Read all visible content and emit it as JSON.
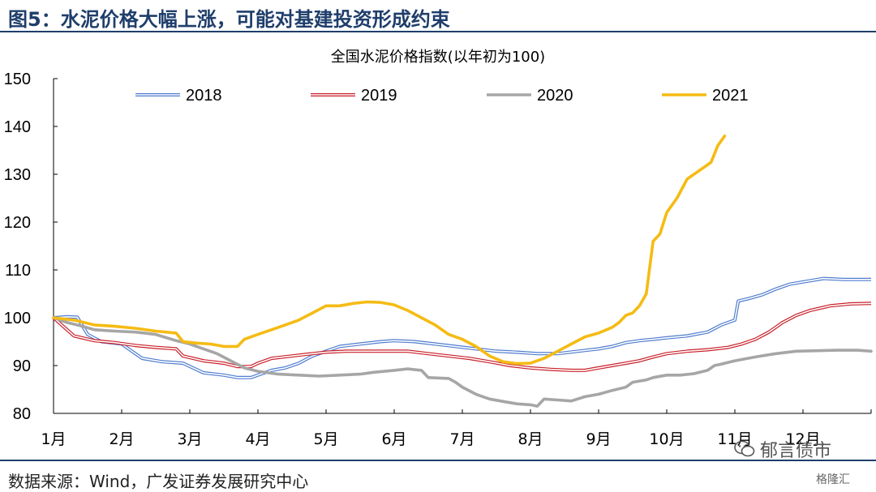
{
  "figure": {
    "title": "图5：水泥价格大幅上涨，可能对基建投资形成约束",
    "source": "数据来源：Wind，广发证券发展研究中心",
    "watermark": "郁言债市",
    "watermark_logo": "格隆汇"
  },
  "colors": {
    "2018": "#4f7ccf",
    "2019": "#c8202a",
    "2020": "#a6a6a6",
    "2021": "#f5bb14",
    "axis": "#000000",
    "title": "#1f3e6b"
  },
  "chart_data": {
    "type": "line",
    "title": "全国水泥价格指数(以年初为100)",
    "xlabel": "",
    "ylabel": "",
    "ylim": [
      80,
      150
    ],
    "yticks": [
      "80",
      "90",
      "100",
      "110",
      "120",
      "130",
      "140",
      "150"
    ],
    "x_domain": [
      1,
      13
    ],
    "xticks": [
      "1月",
      "2月",
      "3月",
      "4月",
      "5月",
      "6月",
      "7月",
      "8月",
      "9月",
      "10月",
      "11月",
      "12月"
    ],
    "grid": false,
    "legend": "top",
    "series": [
      {
        "name": "2018",
        "style": "double",
        "points": [
          [
            1.0,
            100
          ],
          [
            1.2,
            100.2
          ],
          [
            1.35,
            100.1
          ],
          [
            1.5,
            96.5
          ],
          [
            1.7,
            95
          ],
          [
            2.0,
            94.5
          ],
          [
            2.3,
            91.5
          ],
          [
            2.6,
            90.8
          ],
          [
            2.9,
            90.5
          ],
          [
            3.2,
            88.5
          ],
          [
            3.5,
            88
          ],
          [
            3.7,
            87.5
          ],
          [
            3.9,
            87.5
          ],
          [
            4.0,
            88
          ],
          [
            4.2,
            89
          ],
          [
            4.4,
            89.5
          ],
          [
            4.6,
            90.5
          ],
          [
            4.8,
            92
          ],
          [
            5.0,
            93
          ],
          [
            5.2,
            94
          ],
          [
            5.5,
            94.5
          ],
          [
            5.8,
            95
          ],
          [
            6.0,
            95.2
          ],
          [
            6.3,
            95
          ],
          [
            6.6,
            94.5
          ],
          [
            6.9,
            94
          ],
          [
            7.2,
            93.5
          ],
          [
            7.5,
            93
          ],
          [
            7.8,
            92.8
          ],
          [
            8.1,
            92.5
          ],
          [
            8.4,
            92.5
          ],
          [
            8.7,
            93
          ],
          [
            9.0,
            93.5
          ],
          [
            9.2,
            94
          ],
          [
            9.4,
            94.8
          ],
          [
            9.6,
            95.2
          ],
          [
            9.8,
            95.5
          ],
          [
            10.0,
            95.8
          ],
          [
            10.3,
            96.2
          ],
          [
            10.6,
            97
          ],
          [
            10.8,
            98.5
          ],
          [
            11.0,
            99.5
          ],
          [
            11.05,
            103.5
          ],
          [
            11.2,
            104
          ],
          [
            11.4,
            104.8
          ],
          [
            11.6,
            106
          ],
          [
            11.8,
            107
          ],
          [
            12.0,
            107.5
          ],
          [
            12.3,
            108.2
          ],
          [
            12.6,
            108
          ],
          [
            13.0,
            108
          ]
        ]
      },
      {
        "name": "2019",
        "style": "double",
        "points": [
          [
            1.0,
            100
          ],
          [
            1.3,
            96.2
          ],
          [
            1.6,
            95.2
          ],
          [
            1.9,
            94.8
          ],
          [
            2.2,
            94.2
          ],
          [
            2.5,
            93.8
          ],
          [
            2.8,
            93.5
          ],
          [
            2.9,
            92
          ],
          [
            3.2,
            91
          ],
          [
            3.5,
            90.5
          ],
          [
            3.7,
            89.8
          ],
          [
            3.9,
            89.8
          ],
          [
            4.0,
            90.5
          ],
          [
            4.2,
            91.5
          ],
          [
            4.5,
            92
          ],
          [
            4.8,
            92.5
          ],
          [
            5.0,
            92.8
          ],
          [
            5.3,
            93
          ],
          [
            5.6,
            93
          ],
          [
            5.9,
            93
          ],
          [
            6.2,
            93
          ],
          [
            6.5,
            92.5
          ],
          [
            6.8,
            92
          ],
          [
            7.1,
            91.5
          ],
          [
            7.4,
            90.8
          ],
          [
            7.7,
            90
          ],
          [
            8.0,
            89.5
          ],
          [
            8.3,
            89.2
          ],
          [
            8.6,
            89
          ],
          [
            8.8,
            89
          ],
          [
            9.0,
            89.5
          ],
          [
            9.2,
            90
          ],
          [
            9.4,
            90.5
          ],
          [
            9.6,
            91
          ],
          [
            9.8,
            91.8
          ],
          [
            10.0,
            92.5
          ],
          [
            10.3,
            93
          ],
          [
            10.6,
            93.3
          ],
          [
            10.9,
            93.8
          ],
          [
            11.1,
            94.5
          ],
          [
            11.3,
            95.5
          ],
          [
            11.5,
            97
          ],
          [
            11.7,
            99
          ],
          [
            11.9,
            100.5
          ],
          [
            12.1,
            101.5
          ],
          [
            12.4,
            102.5
          ],
          [
            12.7,
            102.9
          ],
          [
            13.0,
            103
          ]
        ]
      },
      {
        "name": "2020",
        "style": "solid",
        "points": [
          [
            1.0,
            100
          ],
          [
            1.2,
            99
          ],
          [
            1.4,
            98.3
          ],
          [
            1.6,
            97.5
          ],
          [
            1.9,
            97.2
          ],
          [
            2.2,
            97
          ],
          [
            2.5,
            96.5
          ],
          [
            2.8,
            95.2
          ],
          [
            3.0,
            94.5
          ],
          [
            3.2,
            93.5
          ],
          [
            3.4,
            92.5
          ],
          [
            3.6,
            91
          ],
          [
            3.8,
            89.5
          ],
          [
            4.0,
            88.8
          ],
          [
            4.3,
            88.2
          ],
          [
            4.6,
            88
          ],
          [
            4.9,
            87.8
          ],
          [
            5.2,
            88
          ],
          [
            5.5,
            88.2
          ],
          [
            5.7,
            88.6
          ],
          [
            6.0,
            89
          ],
          [
            6.2,
            89.3
          ],
          [
            6.4,
            89
          ],
          [
            6.5,
            87.5
          ],
          [
            6.8,
            87.3
          ],
          [
            6.9,
            86.5
          ],
          [
            7.0,
            85.5
          ],
          [
            7.2,
            84
          ],
          [
            7.4,
            83
          ],
          [
            7.6,
            82.5
          ],
          [
            7.8,
            82
          ],
          [
            8.0,
            81.8
          ],
          [
            8.1,
            81.5
          ],
          [
            8.2,
            83
          ],
          [
            8.4,
            82.8
          ],
          [
            8.6,
            82.6
          ],
          [
            8.8,
            83.5
          ],
          [
            9.0,
            84
          ],
          [
            9.2,
            84.8
          ],
          [
            9.4,
            85.5
          ],
          [
            9.5,
            86.5
          ],
          [
            9.7,
            87
          ],
          [
            9.8,
            87.5
          ],
          [
            10.0,
            88
          ],
          [
            10.2,
            88
          ],
          [
            10.4,
            88.3
          ],
          [
            10.6,
            89
          ],
          [
            10.7,
            90
          ],
          [
            10.8,
            90.3
          ],
          [
            11.0,
            91
          ],
          [
            11.3,
            91.8
          ],
          [
            11.6,
            92.5
          ],
          [
            11.9,
            93
          ],
          [
            12.2,
            93.1
          ],
          [
            12.5,
            93.2
          ],
          [
            12.8,
            93.2
          ],
          [
            13.0,
            93
          ]
        ]
      },
      {
        "name": "2021",
        "style": "solid",
        "points": [
          [
            1.0,
            100
          ],
          [
            1.3,
            99.5
          ],
          [
            1.6,
            98.5
          ],
          [
            1.9,
            98.2
          ],
          [
            2.2,
            97.8
          ],
          [
            2.5,
            97.2
          ],
          [
            2.8,
            96.8
          ],
          [
            2.9,
            95
          ],
          [
            3.1,
            94.7
          ],
          [
            3.3,
            94.5
          ],
          [
            3.5,
            94
          ],
          [
            3.7,
            94
          ],
          [
            3.8,
            95.5
          ],
          [
            4.0,
            96.5
          ],
          [
            4.2,
            97.5
          ],
          [
            4.4,
            98.5
          ],
          [
            4.6,
            99.5
          ],
          [
            4.8,
            101
          ],
          [
            5.0,
            102.5
          ],
          [
            5.2,
            102.5
          ],
          [
            5.4,
            103
          ],
          [
            5.6,
            103.3
          ],
          [
            5.8,
            103.2
          ],
          [
            6.0,
            102.7
          ],
          [
            6.2,
            101.5
          ],
          [
            6.4,
            100
          ],
          [
            6.6,
            98.5
          ],
          [
            6.8,
            96.5
          ],
          [
            7.0,
            95.5
          ],
          [
            7.2,
            94
          ],
          [
            7.4,
            92
          ],
          [
            7.6,
            90.8
          ],
          [
            7.8,
            90.4
          ],
          [
            8.0,
            90.5
          ],
          [
            8.2,
            91.5
          ],
          [
            8.4,
            93
          ],
          [
            8.6,
            94.5
          ],
          [
            8.8,
            96
          ],
          [
            9.0,
            96.8
          ],
          [
            9.2,
            98
          ],
          [
            9.3,
            99
          ],
          [
            9.4,
            100.5
          ],
          [
            9.5,
            101
          ],
          [
            9.6,
            102.5
          ],
          [
            9.7,
            105
          ],
          [
            9.8,
            116
          ],
          [
            9.9,
            117.5
          ],
          [
            10.0,
            122
          ],
          [
            10.15,
            125
          ],
          [
            10.3,
            129
          ],
          [
            10.5,
            131
          ],
          [
            10.65,
            132.5
          ],
          [
            10.75,
            136
          ],
          [
            10.85,
            138
          ]
        ]
      }
    ]
  }
}
